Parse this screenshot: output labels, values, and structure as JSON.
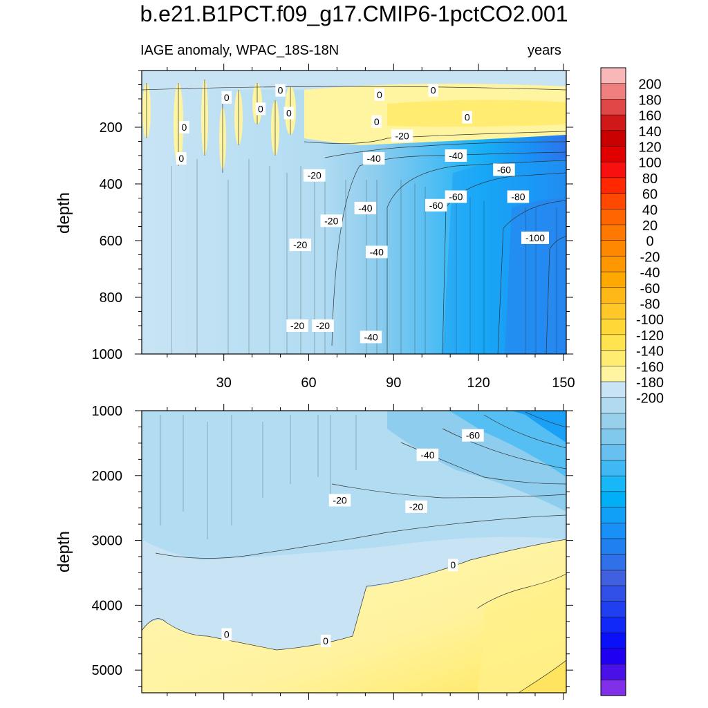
{
  "chart_data": {
    "type": "heatmap",
    "title": "b.e21.B1PCT.f09_g17.CMIP6-1pctCO2.001",
    "subtitle_left": "IAGE anomaly, WPAC_18S-18N",
    "subtitle_right": "years",
    "panels": [
      {
        "name": "upper",
        "xlabel": "",
        "ylabel": "depth",
        "xlim": [
          1,
          151
        ],
        "ylim": [
          1000,
          0
        ],
        "xticks": [
          30,
          60,
          90,
          120,
          150
        ],
        "xtick_labels": [
          "30",
          "60",
          "90",
          "120",
          "150"
        ],
        "yticks": [
          200,
          400,
          600,
          800,
          1000
        ],
        "ytick_labels": [
          "200",
          "400",
          "600",
          "800",
          "1000"
        ],
        "contour_labels": [
          {
            "text": "0",
            "x": 31,
            "y": 95
          },
          {
            "text": "0",
            "x": 50,
            "y": 70
          },
          {
            "text": "0",
            "x": 43,
            "y": 135
          },
          {
            "text": "0",
            "x": 53,
            "y": 150
          },
          {
            "text": "0",
            "x": 16,
            "y": 200
          },
          {
            "text": "0",
            "x": 15,
            "y": 310
          },
          {
            "text": "0",
            "x": 84,
            "y": 180
          },
          {
            "text": "0",
            "x": 85,
            "y": 85
          },
          {
            "text": "0",
            "x": 104,
            "y": 70
          },
          {
            "text": "0",
            "x": 116,
            "y": 165
          },
          {
            "text": "-20",
            "x": 93,
            "y": 230
          },
          {
            "text": "-40",
            "x": 83,
            "y": 310
          },
          {
            "text": "-40",
            "x": 112,
            "y": 300
          },
          {
            "text": "-60",
            "x": 129,
            "y": 350
          },
          {
            "text": "-20",
            "x": 62,
            "y": 370
          },
          {
            "text": "-40",
            "x": 80,
            "y": 485
          },
          {
            "text": "-60",
            "x": 112,
            "y": 445
          },
          {
            "text": "-60",
            "x": 105,
            "y": 475
          },
          {
            "text": "-80",
            "x": 134,
            "y": 445
          },
          {
            "text": "-20",
            "x": 68,
            "y": 530
          },
          {
            "text": "-100",
            "x": 140,
            "y": 590
          },
          {
            "text": "-20",
            "x": 57,
            "y": 615
          },
          {
            "text": "-40",
            "x": 84,
            "y": 640
          },
          {
            "text": "-20",
            "x": 56,
            "y": 900
          },
          {
            "text": "-20",
            "x": 65,
            "y": 900
          },
          {
            "text": "-40",
            "x": 82,
            "y": 940
          }
        ]
      },
      {
        "name": "lower",
        "xlabel": "",
        "ylabel": "depth",
        "xlim": [
          1,
          151
        ],
        "ylim": [
          5350,
          1000
        ],
        "xticks": [
          30,
          60,
          90,
          120,
          150
        ],
        "xtick_labels": [
          "",
          "",
          "",
          "",
          ""
        ],
        "yticks": [
          1000,
          2000,
          3000,
          4000,
          5000
        ],
        "ytick_labels": [
          "1000",
          "2000",
          "3000",
          "4000",
          "5000"
        ],
        "contour_labels": [
          {
            "text": "-60",
            "x": 118,
            "y": 1380
          },
          {
            "text": "-40",
            "x": 102,
            "y": 1680
          },
          {
            "text": "-20",
            "x": 71,
            "y": 2380
          },
          {
            "text": "-20",
            "x": 98,
            "y": 2480
          },
          {
            "text": "0",
            "x": 111,
            "y": 3380
          },
          {
            "text": "0",
            "x": 31,
            "y": 4450
          },
          {
            "text": "0",
            "x": 66,
            "y": 4550
          }
        ]
      }
    ],
    "colorbar": {
      "levels": [
        200,
        180,
        160,
        140,
        120,
        100,
        80,
        60,
        40,
        20,
        0,
        -20,
        -40,
        -60,
        -80,
        -100,
        -120,
        -140,
        -160,
        -180,
        -200
      ],
      "tick_labels": [
        "200",
        "180",
        "160",
        "140",
        "120",
        "100",
        "80",
        "60",
        "40",
        "20",
        "0",
        "-20",
        "-40",
        "-60",
        "-80",
        "-100",
        "-120",
        "-140",
        "-160",
        "-180",
        "-200"
      ],
      "bands": [
        "#f8b8b8",
        "#f08080",
        "#e04848",
        "#d01818",
        "#c80000",
        "#e00000",
        "#f81010",
        "#ff2800",
        "#ff4800",
        "#ff6600",
        "#ff7800",
        "#ff8800",
        "#ff9800",
        "#ffa800",
        "#ffb818",
        "#ffc828",
        "#ffd838",
        "#ffe450",
        "#ffec70",
        "#fff4a0",
        "#c8e4f4",
        "#b0daf0",
        "#98d0ec",
        "#80c8ec",
        "#68c0f0",
        "#40b8f4",
        "#18b8f8",
        "#00aff5",
        "#10a0f8",
        "#1890f8",
        "#2080f0",
        "#3070e8",
        "#4060e0",
        "#3050e8",
        "#2040f0",
        "#1028f8",
        "#0a10f8",
        "#2000f0",
        "#4a10e8",
        "#8030e8"
      ]
    }
  }
}
